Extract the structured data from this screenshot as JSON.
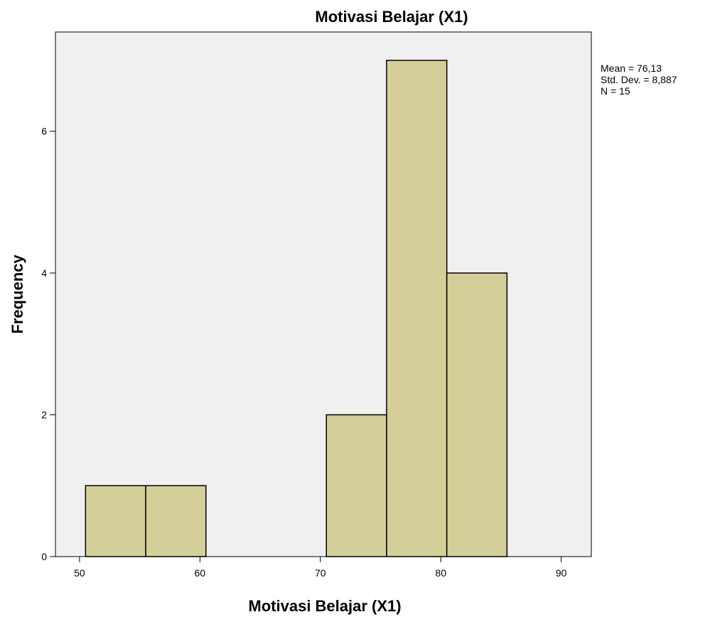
{
  "chart_data": {
    "type": "bar",
    "title": "Motivasi Belajar (X1)",
    "xlabel": "Motivasi Belajar (X1)",
    "ylabel": "Frequency",
    "bin_width": 5,
    "bins": [
      {
        "start": 50.5,
        "end": 55.5,
        "count": 1
      },
      {
        "start": 55.5,
        "end": 60.5,
        "count": 1
      },
      {
        "start": 70.5,
        "end": 75.5,
        "count": 2
      },
      {
        "start": 75.5,
        "end": 80.5,
        "count": 7
      },
      {
        "start": 80.5,
        "end": 85.5,
        "count": 4
      }
    ],
    "xlim": [
      48,
      92.5
    ],
    "ylim": [
      0,
      7.4
    ],
    "xticks": [
      50,
      60,
      70,
      80,
      90
    ],
    "yticks": [
      0,
      2,
      4,
      6
    ],
    "grid": false,
    "legend": "none",
    "stats": {
      "mean": "Mean = 76,13",
      "std": "Std. Dev. = 8,887",
      "n": "N = 15"
    },
    "colors": {
      "bar_fill": "#d4cf98",
      "bar_stroke": "#000000",
      "plot_bg": "#f0f0f0",
      "axis": "#000000"
    }
  }
}
